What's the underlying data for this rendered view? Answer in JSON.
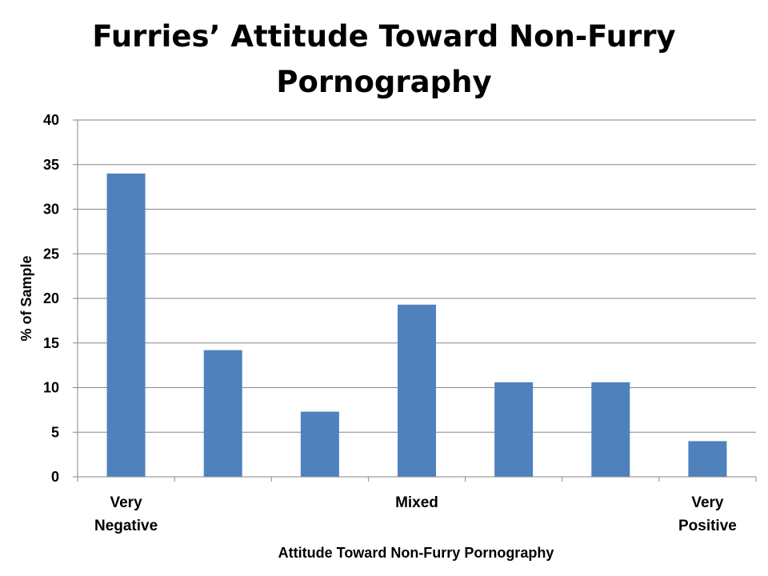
{
  "chart_data": {
    "type": "bar",
    "title_lines": [
      "Furries’ Attitude Toward Non-Furry",
      "Pornography"
    ],
    "xlabel": "Attitude Toward Non-Furry Pornography",
    "ylabel": "% of Sample",
    "ylim": [
      0,
      40
    ],
    "yticks": [
      0,
      5,
      10,
      15,
      20,
      25,
      30,
      35,
      40
    ],
    "grid": true,
    "legend": "none",
    "bar_color": "#4f81bd",
    "categories": [
      [
        "Very",
        "Negative"
      ],
      [],
      [],
      [
        "Mixed"
      ],
      [],
      [],
      [
        "Very",
        "Positive"
      ]
    ],
    "values": [
      34,
      14.2,
      7.3,
      19.3,
      10.6,
      10.6,
      4.0
    ]
  }
}
